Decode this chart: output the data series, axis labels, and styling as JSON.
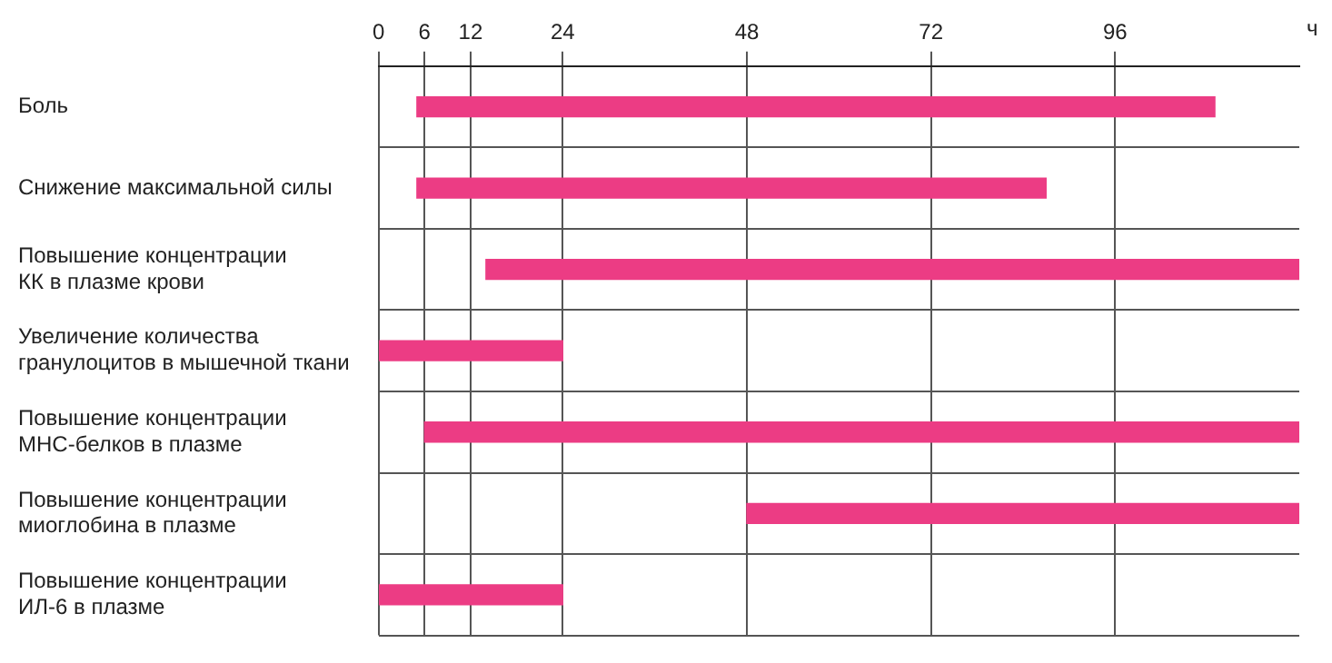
{
  "chart_data": {
    "type": "bar",
    "orientation": "horizontal",
    "xlabel": "ч",
    "categories": [
      "Боль",
      "Снижение максимальной силы",
      "Повышение концентрации\nКК в плазме крови",
      "Увеличение количества\nгранулоцитов в мышечной ткани",
      "Повышение концентрации\nМНС-белков в плазме",
      "Повышение концентрации\nмиоглобина в плазме",
      "Повышение концентрации\nИЛ-6 в плазме"
    ],
    "base": [
      5,
      5,
      14,
      0,
      6,
      48,
      0
    ],
    "values": [
      104,
      82,
      106,
      24,
      114,
      72,
      24
    ],
    "color": "#ec3c84",
    "xlim": [
      0,
      120
    ],
    "xticks": [
      0,
      6,
      12,
      24,
      48,
      72,
      96
    ],
    "grid": true,
    "legend": false
  }
}
